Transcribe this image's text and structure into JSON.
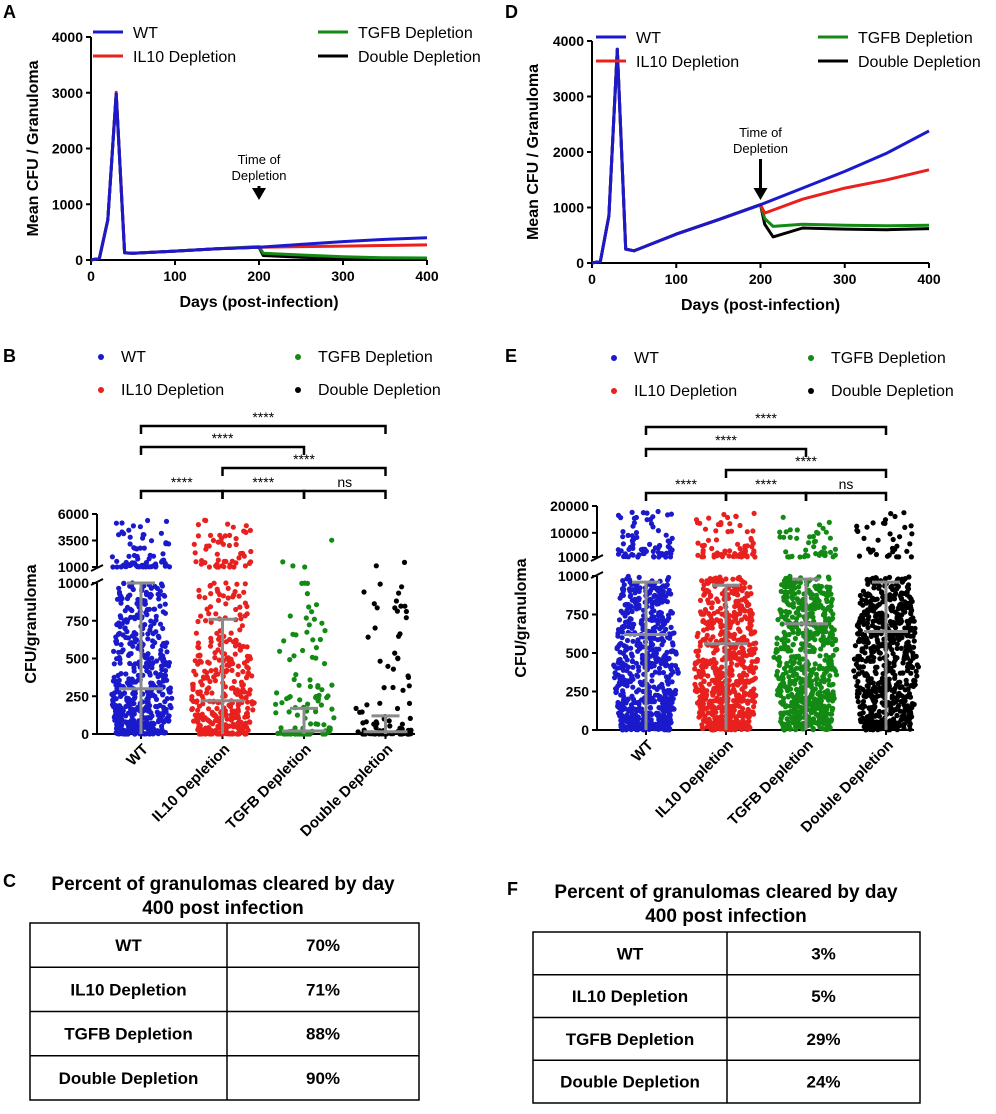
{
  "panel_letters": {
    "a": "A",
    "b": "B",
    "c": "C",
    "d": "D",
    "e": "E",
    "f": "F"
  },
  "chart_data": [
    {
      "panel": "A",
      "type": "line",
      "xlabel": "Days (post-infection)",
      "ylabel": "Mean CFU / Granuloma",
      "xlim": [
        0,
        400
      ],
      "ylim": [
        0,
        4000
      ],
      "xticks": [
        0,
        100,
        200,
        300,
        400
      ],
      "yticks": [
        0,
        1000,
        2000,
        3000,
        4000
      ],
      "annotation": {
        "line1": "Time of",
        "line2": "Depletion",
        "x": 200
      },
      "series": [
        {
          "name": "WT",
          "color": "#1a1acc",
          "points": [
            [
              0,
              0
            ],
            [
              10,
              30
            ],
            [
              20,
              720
            ],
            [
              30,
              2980
            ],
            [
              40,
              130
            ],
            [
              50,
              120
            ],
            [
              100,
              160
            ],
            [
              150,
              200
            ],
            [
              200,
              230
            ],
            [
              250,
              280
            ],
            [
              300,
              330
            ],
            [
              350,
              370
            ],
            [
              400,
              400
            ]
          ]
        },
        {
          "name": "IL10 Depletion",
          "color": "#e8201e",
          "points": [
            [
              0,
              0
            ],
            [
              10,
              30
            ],
            [
              20,
              720
            ],
            [
              30,
              3010
            ],
            [
              40,
              130
            ],
            [
              50,
              120
            ],
            [
              100,
              160
            ],
            [
              150,
              200
            ],
            [
              200,
              230
            ],
            [
              250,
              240
            ],
            [
              300,
              250
            ],
            [
              350,
              260
            ],
            [
              400,
              270
            ]
          ]
        },
        {
          "name": "TGFB Depletion",
          "color": "#138a13",
          "points": [
            [
              0,
              0
            ],
            [
              10,
              30
            ],
            [
              20,
              720
            ],
            [
              30,
              2980
            ],
            [
              40,
              130
            ],
            [
              50,
              120
            ],
            [
              100,
              160
            ],
            [
              150,
              200
            ],
            [
              200,
              240
            ],
            [
              205,
              120
            ],
            [
              250,
              90
            ],
            [
              300,
              60
            ],
            [
              350,
              40
            ],
            [
              400,
              35
            ]
          ]
        },
        {
          "name": "Double Depletion",
          "color": "#000000",
          "points": [
            [
              0,
              0
            ],
            [
              10,
              30
            ],
            [
              20,
              720
            ],
            [
              30,
              2980
            ],
            [
              40,
              130
            ],
            [
              50,
              120
            ],
            [
              100,
              160
            ],
            [
              150,
              200
            ],
            [
              200,
              230
            ],
            [
              205,
              80
            ],
            [
              250,
              50
            ],
            [
              300,
              30
            ],
            [
              350,
              20
            ],
            [
              400,
              15
            ]
          ]
        }
      ],
      "legend": [
        "WT",
        "IL10 Depletion",
        "TGFB Depletion",
        "Double Depletion"
      ]
    },
    {
      "panel": "D",
      "type": "line",
      "xlabel": "Days (post-infection)",
      "ylabel": "Mean CFU / Granuloma",
      "xlim": [
        0,
        400
      ],
      "ylim": [
        0,
        4000
      ],
      "xticks": [
        0,
        100,
        200,
        300,
        400
      ],
      "yticks": [
        0,
        1000,
        2000,
        3000,
        4000
      ],
      "annotation": {
        "line1": "Time of",
        "line2": "Depletion",
        "x": 200
      },
      "series": [
        {
          "name": "WT",
          "color": "#1a1acc",
          "points": [
            [
              0,
              0
            ],
            [
              10,
              30
            ],
            [
              20,
              850
            ],
            [
              30,
              3850
            ],
            [
              40,
              250
            ],
            [
              50,
              220
            ],
            [
              100,
              520
            ],
            [
              150,
              780
            ],
            [
              200,
              1050
            ],
            [
              250,
              1350
            ],
            [
              300,
              1650
            ],
            [
              350,
              1980
            ],
            [
              400,
              2380
            ]
          ]
        },
        {
          "name": "IL10 Depletion",
          "color": "#e8201e",
          "points": [
            [
              0,
              0
            ],
            [
              10,
              30
            ],
            [
              20,
              850
            ],
            [
              30,
              3850
            ],
            [
              40,
              250
            ],
            [
              50,
              220
            ],
            [
              100,
              520
            ],
            [
              150,
              780
            ],
            [
              200,
              1050
            ],
            [
              205,
              900
            ],
            [
              250,
              1150
            ],
            [
              300,
              1350
            ],
            [
              350,
              1500
            ],
            [
              400,
              1680
            ]
          ]
        },
        {
          "name": "TGFB Depletion",
          "color": "#138a13",
          "points": [
            [
              0,
              0
            ],
            [
              10,
              30
            ],
            [
              20,
              850
            ],
            [
              30,
              3850
            ],
            [
              40,
              250
            ],
            [
              50,
              220
            ],
            [
              100,
              520
            ],
            [
              150,
              780
            ],
            [
              200,
              1050
            ],
            [
              205,
              800
            ],
            [
              215,
              660
            ],
            [
              250,
              700
            ],
            [
              300,
              680
            ],
            [
              350,
              670
            ],
            [
              400,
              680
            ]
          ]
        },
        {
          "name": "Double Depletion",
          "color": "#000000",
          "points": [
            [
              0,
              0
            ],
            [
              10,
              30
            ],
            [
              20,
              850
            ],
            [
              30,
              3850
            ],
            [
              40,
              250
            ],
            [
              50,
              220
            ],
            [
              100,
              520
            ],
            [
              150,
              780
            ],
            [
              200,
              1050
            ],
            [
              205,
              700
            ],
            [
              215,
              470
            ],
            [
              250,
              630
            ],
            [
              300,
              610
            ],
            [
              350,
              600
            ],
            [
              400,
              620
            ]
          ]
        }
      ],
      "legend": [
        "WT",
        "IL10 Depletion",
        "TGFB Depletion",
        "Double Depletion"
      ]
    },
    {
      "panel": "B",
      "type": "scatter",
      "ylabel": "CFU/granuloma",
      "yticks_lower": [
        0,
        250,
        500,
        750,
        1000
      ],
      "yticks_upper": [
        1000,
        3500,
        6000
      ],
      "ylim_lower": [
        0,
        1000
      ],
      "ylim_upper": [
        1000,
        6000
      ],
      "categories": [
        "WT",
        "IL10 Depletion",
        "TGFB Depletion",
        "Double Depletion"
      ],
      "colors": [
        "#1a1acc",
        "#e8201e",
        "#138a13",
        "#000000"
      ],
      "medians": [
        300,
        220,
        20,
        15
      ],
      "upper_err": [
        1000,
        760,
        170,
        120
      ],
      "point_counts": [
        500,
        360,
        110,
        100
      ],
      "high_counts": [
        70,
        55,
        4,
        2
      ],
      "legend": [
        "WT",
        "IL10 Depletion",
        "TGFB Depletion",
        "Double Depletion"
      ],
      "significance": [
        {
          "from": 0,
          "to": 3,
          "label": "****"
        },
        {
          "from": 0,
          "to": 2,
          "label": "****"
        },
        {
          "from": 1,
          "to": 3,
          "label": "****"
        },
        {
          "from": 0,
          "to": 1,
          "label": "****"
        },
        {
          "from": 1,
          "to": 2,
          "label": "****"
        },
        {
          "from": 2,
          "to": 3,
          "label": "ns"
        }
      ]
    },
    {
      "panel": "E",
      "type": "scatter",
      "ylabel": "CFU/granuloma",
      "yticks_lower": [
        0,
        250,
        500,
        750,
        1000
      ],
      "yticks_upper": [
        1000,
        10000,
        20000
      ],
      "ylim_lower": [
        0,
        1000
      ],
      "ylim_upper": [
        1000,
        20000
      ],
      "categories": [
        "WT",
        "IL10 Depletion",
        "TGFB Depletion",
        "Double Depletion"
      ],
      "colors": [
        "#1a1acc",
        "#e8201e",
        "#138a13",
        "#000000"
      ],
      "medians": [
        620,
        560,
        690,
        640
      ],
      "upper_err": [
        960,
        940,
        980,
        960
      ],
      "point_counts": [
        650,
        650,
        650,
        650
      ],
      "high_counts": [
        80,
        70,
        45,
        35
      ],
      "legend": [
        "WT",
        "IL10 Depletion",
        "TGFB Depletion",
        "Double Depletion"
      ],
      "significance": [
        {
          "from": 0,
          "to": 3,
          "label": "****"
        },
        {
          "from": 0,
          "to": 2,
          "label": "****"
        },
        {
          "from": 1,
          "to": 3,
          "label": "****"
        },
        {
          "from": 0,
          "to": 1,
          "label": "****"
        },
        {
          "from": 1,
          "to": 2,
          "label": "****"
        },
        {
          "from": 2,
          "to": 3,
          "label": "ns"
        }
      ]
    },
    {
      "panel": "C",
      "type": "table",
      "title_line1": "Percent of granulomas cleared by day",
      "title_line2": "400 post infection",
      "rows": [
        [
          "WT",
          "70%"
        ],
        [
          "IL10 Depletion",
          "71%"
        ],
        [
          "TGFB Depletion",
          "88%"
        ],
        [
          "Double Depletion",
          "90%"
        ]
      ]
    },
    {
      "panel": "F",
      "type": "table",
      "title_line1": "Percent of granulomas cleared by day",
      "title_line2": "400 post infection",
      "rows": [
        [
          "WT",
          "3%"
        ],
        [
          "IL10 Depletion",
          "5%"
        ],
        [
          "TGFB Depletion",
          "29%"
        ],
        [
          "Double Depletion",
          "24%"
        ]
      ]
    }
  ]
}
